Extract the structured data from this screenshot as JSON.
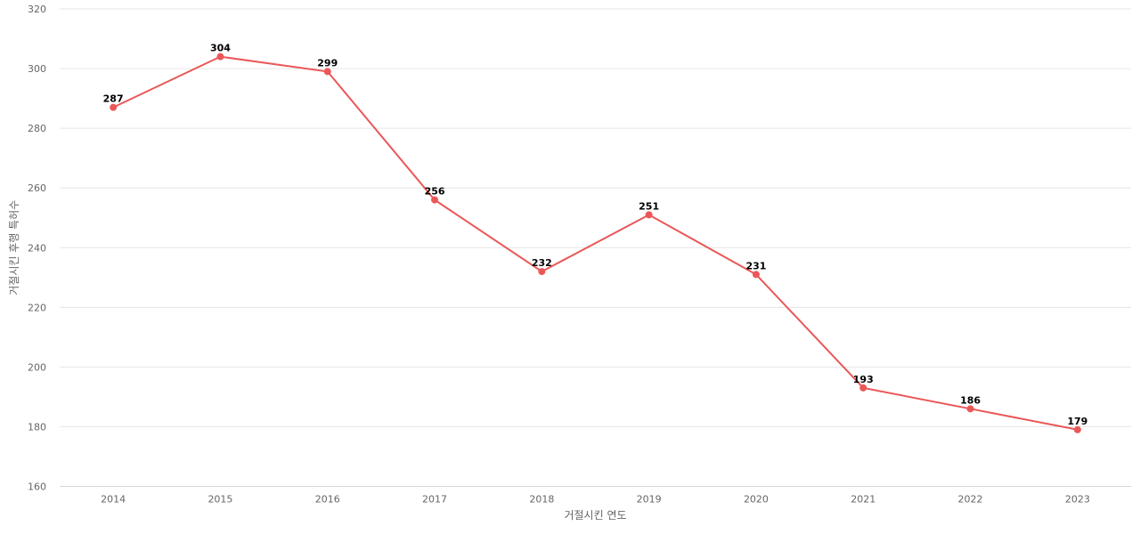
{
  "chart_data": {
    "type": "line",
    "categories": [
      "2014",
      "2015",
      "2016",
      "2017",
      "2018",
      "2019",
      "2020",
      "2021",
      "2022",
      "2023"
    ],
    "series": [
      {
        "values": [
          287,
          304,
          299,
          256,
          232,
          251,
          231,
          193,
          186,
          179
        ],
        "color": "#eb5757"
      }
    ],
    "xlabel": "거절시킨 연도",
    "ylabel": "거절시킨 후행 특허수",
    "ylim": [
      160,
      320
    ],
    "yticks": [
      160,
      180,
      200,
      220,
      240,
      260,
      280,
      300,
      320
    ],
    "grid": true,
    "data_labels": true
  }
}
